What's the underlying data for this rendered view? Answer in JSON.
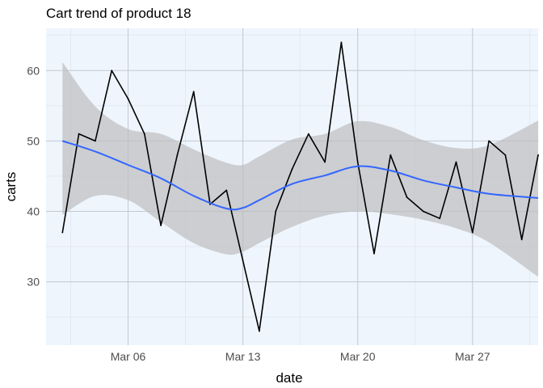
{
  "chart_data": {
    "type": "line",
    "title": "Cart trend of product 18",
    "xlabel": "date",
    "ylabel": "carts",
    "x_ticks": [
      "Mar 06",
      "Mar 13",
      "Mar 20",
      "Mar 27"
    ],
    "y_ticks": [
      30,
      40,
      50,
      60
    ],
    "xlim": [
      "2024-03-01",
      "2024-03-31"
    ],
    "ylim": [
      21,
      66
    ],
    "grid": true,
    "panel_background": "#eef5fd",
    "series": [
      {
        "style": "line",
        "color": "#000000",
        "x": [
          "2024-03-02",
          "2024-03-03",
          "2024-03-04",
          "2024-03-05",
          "2024-03-06",
          "2024-03-07",
          "2024-03-08",
          "2024-03-09",
          "2024-03-10",
          "2024-03-11",
          "2024-03-12",
          "2024-03-13",
          "2024-03-14",
          "2024-03-15",
          "2024-03-16",
          "2024-03-17",
          "2024-03-18",
          "2024-03-19",
          "2024-03-20",
          "2024-03-21",
          "2024-03-22",
          "2024-03-23",
          "2024-03-24",
          "2024-03-25",
          "2024-03-26",
          "2024-03-27",
          "2024-03-28",
          "2024-03-29",
          "2024-03-30",
          "2024-03-31"
        ],
        "values": [
          37,
          51,
          50,
          60,
          56,
          51,
          38,
          48,
          57,
          41,
          43,
          33,
          23,
          40,
          46,
          51,
          47,
          64,
          47,
          34,
          48,
          42,
          40,
          39,
          47,
          37,
          50,
          48,
          36,
          48
        ]
      },
      {
        "style": "smooth",
        "color": "#3366ff",
        "band_color": "#bdbdbd",
        "x": [
          "2024-03-02",
          "2024-03-04",
          "2024-03-06",
          "2024-03-08",
          "2024-03-10",
          "2024-03-12",
          "2024-03-13",
          "2024-03-14",
          "2024-03-16",
          "2024-03-18",
          "2024-03-20",
          "2024-03-22",
          "2024-03-24",
          "2024-03-26",
          "2024-03-28",
          "2024-03-31"
        ],
        "fit": [
          50.0,
          48.5,
          46.6,
          44.7,
          42.2,
          40.4,
          40.5,
          41.6,
          43.9,
          45.1,
          46.4,
          45.8,
          44.4,
          43.4,
          42.5,
          41.9
        ],
        "lower": [
          39.5,
          42.2,
          41.6,
          38.5,
          35.5,
          33.9,
          34.3,
          35.5,
          37.8,
          39.4,
          40.0,
          39.6,
          38.8,
          37.6,
          35.6,
          30.7
        ],
        "upper": [
          61.2,
          54.9,
          51.7,
          51.0,
          48.8,
          46.9,
          46.6,
          47.8,
          50.2,
          51.0,
          52.8,
          52.0,
          50.1,
          49.0,
          49.4,
          52.9
        ]
      }
    ]
  }
}
